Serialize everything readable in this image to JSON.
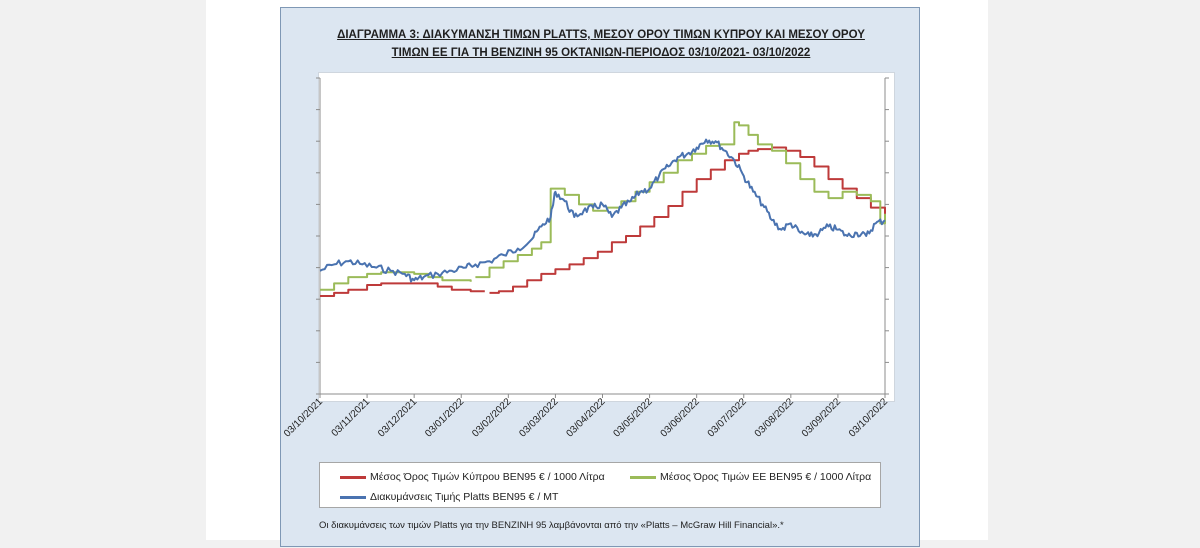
{
  "chart_data": {
    "type": "line",
    "title_lines": [
      "ΔΙΑΓΡΑΜΜΑ 3: ΔΙΑΚΥΜΑΝΣΗ ΤΙΜΩΝ PLATTS, ΜΕΣΟΥ ΟΡΟΥ ΤΙΜΩΝ ΚΥΠΡΟΥ ΚΑΙ ΜΕΣΟΥ ΟΡΟΥ",
      "ΤΙΜΩΝ ΕΕ ΓΙΑ ΤΗ ΒΕΝΖΙΝΗ 95 ΟΚΤΑΝΙΩΝ-ΠΕΡΙΟΔΟΣ  03/10/2021- 03/10/2022"
    ],
    "x_tick_labels": [
      "03/10/2021",
      "03/11/2021",
      "03/12/2021",
      "03/01/2022",
      "03/02/2022",
      "03/03/2022",
      "03/04/2022",
      "03/05/2022",
      "03/06/2022",
      "03/07/2022",
      "03/08/2022",
      "03/09/2022",
      "03/10/2022"
    ],
    "ylim": [
      0,
      10
    ],
    "grid": false,
    "legend_placement": "bottom",
    "series": [
      {
        "name": "Μέσος Όρος Τιμών Κύπρου ΒΕΝ95 € / 1000 Λίτρα",
        "color": "#be3a3a",
        "x": [
          0,
          0.3,
          0.6,
          1.0,
          1.3,
          1.6,
          2.0,
          2.5,
          2.8,
          3.2,
          3.5,
          null,
          3.6,
          3.8,
          4.1,
          4.4,
          4.7,
          5.0,
          5.3,
          5.6,
          5.9,
          6.2,
          6.5,
          6.8,
          7.1,
          7.4,
          7.7,
          8.0,
          8.3,
          8.6,
          8.9,
          9.1,
          9.3,
          9.6,
          9.9,
          10.2,
          10.5,
          10.8,
          11.1,
          11.4,
          11.7,
          12.0
        ],
        "y": [
          3.1,
          3.2,
          3.3,
          3.45,
          3.5,
          3.5,
          3.5,
          3.4,
          3.3,
          3.25,
          3.25,
          null,
          3.2,
          3.25,
          3.4,
          3.6,
          3.8,
          3.95,
          4.1,
          4.3,
          4.5,
          4.8,
          5.0,
          5.3,
          5.6,
          5.95,
          6.4,
          6.8,
          7.1,
          7.4,
          7.6,
          7.7,
          7.75,
          7.8,
          7.7,
          7.5,
          7.2,
          6.8,
          6.5,
          6.2,
          5.9,
          5.7
        ]
      },
      {
        "name": "Μέσος Όρος Τιμών ΕΕ ΒΕΝ95 € / 1000 Λίτρα",
        "color": "#9bbb59",
        "x": [
          0,
          0.3,
          0.6,
          1.0,
          1.3,
          1.6,
          2.0,
          2.3,
          2.6,
          2.9,
          3.2,
          null,
          3.3,
          3.6,
          3.9,
          4.2,
          4.5,
          4.7,
          4.9,
          5.2,
          5.5,
          5.8,
          6.1,
          6.4,
          6.7,
          7.0,
          7.3,
          7.6,
          7.9,
          8.2,
          8.5,
          8.8,
          8.9,
          9.1,
          9.3,
          9.6,
          9.9,
          10.2,
          10.5,
          10.8,
          11.1,
          11.4,
          11.7,
          11.9,
          12.0
        ],
        "y": [
          3.3,
          3.5,
          3.7,
          3.8,
          3.85,
          3.85,
          3.8,
          3.7,
          3.6,
          3.6,
          3.55,
          null,
          3.7,
          4.0,
          4.2,
          4.4,
          4.6,
          4.8,
          6.5,
          6.3,
          6.0,
          5.8,
          5.9,
          6.1,
          6.4,
          6.7,
          7.0,
          7.4,
          7.6,
          7.85,
          7.9,
          8.6,
          8.5,
          8.2,
          7.9,
          7.7,
          7.3,
          6.8,
          6.4,
          6.2,
          6.4,
          6.3,
          6.1,
          5.4,
          5.7
        ]
      },
      {
        "name": "Διακυμάνσεις Τιμής Platts ΒΕΝ95 € / MT",
        "color": "#4a73b0",
        "x": [
          0,
          0.3,
          0.6,
          0.9,
          1.2,
          1.5,
          1.8,
          2.0,
          2.2,
          2.5,
          2.8,
          3.1,
          3.3,
          3.6,
          3.9,
          4.2,
          4.5,
          4.7,
          4.9,
          5.0,
          5.2,
          5.4,
          5.6,
          5.8,
          6.0,
          6.2,
          6.4,
          6.6,
          6.8,
          7.0,
          7.2,
          7.4,
          7.6,
          7.8,
          8.0,
          8.2,
          8.4,
          8.6,
          8.8,
          9.0,
          9.2,
          9.4,
          9.6,
          9.8,
          10.0,
          10.2,
          10.4,
          10.6,
          10.8,
          11.0,
          11.2,
          11.4,
          11.6,
          11.8,
          12.0
        ],
        "y": [
          3.9,
          4.1,
          4.2,
          4.1,
          4.0,
          3.9,
          3.8,
          3.6,
          3.7,
          3.8,
          3.9,
          4.0,
          4.1,
          4.2,
          4.4,
          4.6,
          4.9,
          5.3,
          5.6,
          6.4,
          6.1,
          5.6,
          5.8,
          5.9,
          6.0,
          5.6,
          5.9,
          6.1,
          6.4,
          6.5,
          6.9,
          7.2,
          7.5,
          7.6,
          7.8,
          8.05,
          8.0,
          7.7,
          7.4,
          6.9,
          6.4,
          6.0,
          5.5,
          5.2,
          5.4,
          5.1,
          5.0,
          5.1,
          5.3,
          5.2,
          5.0,
          5.1,
          5.0,
          5.4,
          5.5
        ]
      }
    ]
  },
  "legend": {
    "cy_label": "Μέσος Όρος Τιμών Κύπρου ΒΕΝ95 € / 1000 Λίτρα",
    "eu_label": "Μέσος Όρος Τιμών ΕΕ ΒΕΝ95 € / 1000 Λίτρα",
    "platts_label": "Διακυμάνσεις Τιμής Platts ΒΕΝ95 € / MT"
  },
  "note": "Οι διακυμάνσεις των τιμών Platts για την ΒΕΝΖΙΝΗ 95 λαμβάνονται από την «Platts – McGraw Hill Financial».*"
}
